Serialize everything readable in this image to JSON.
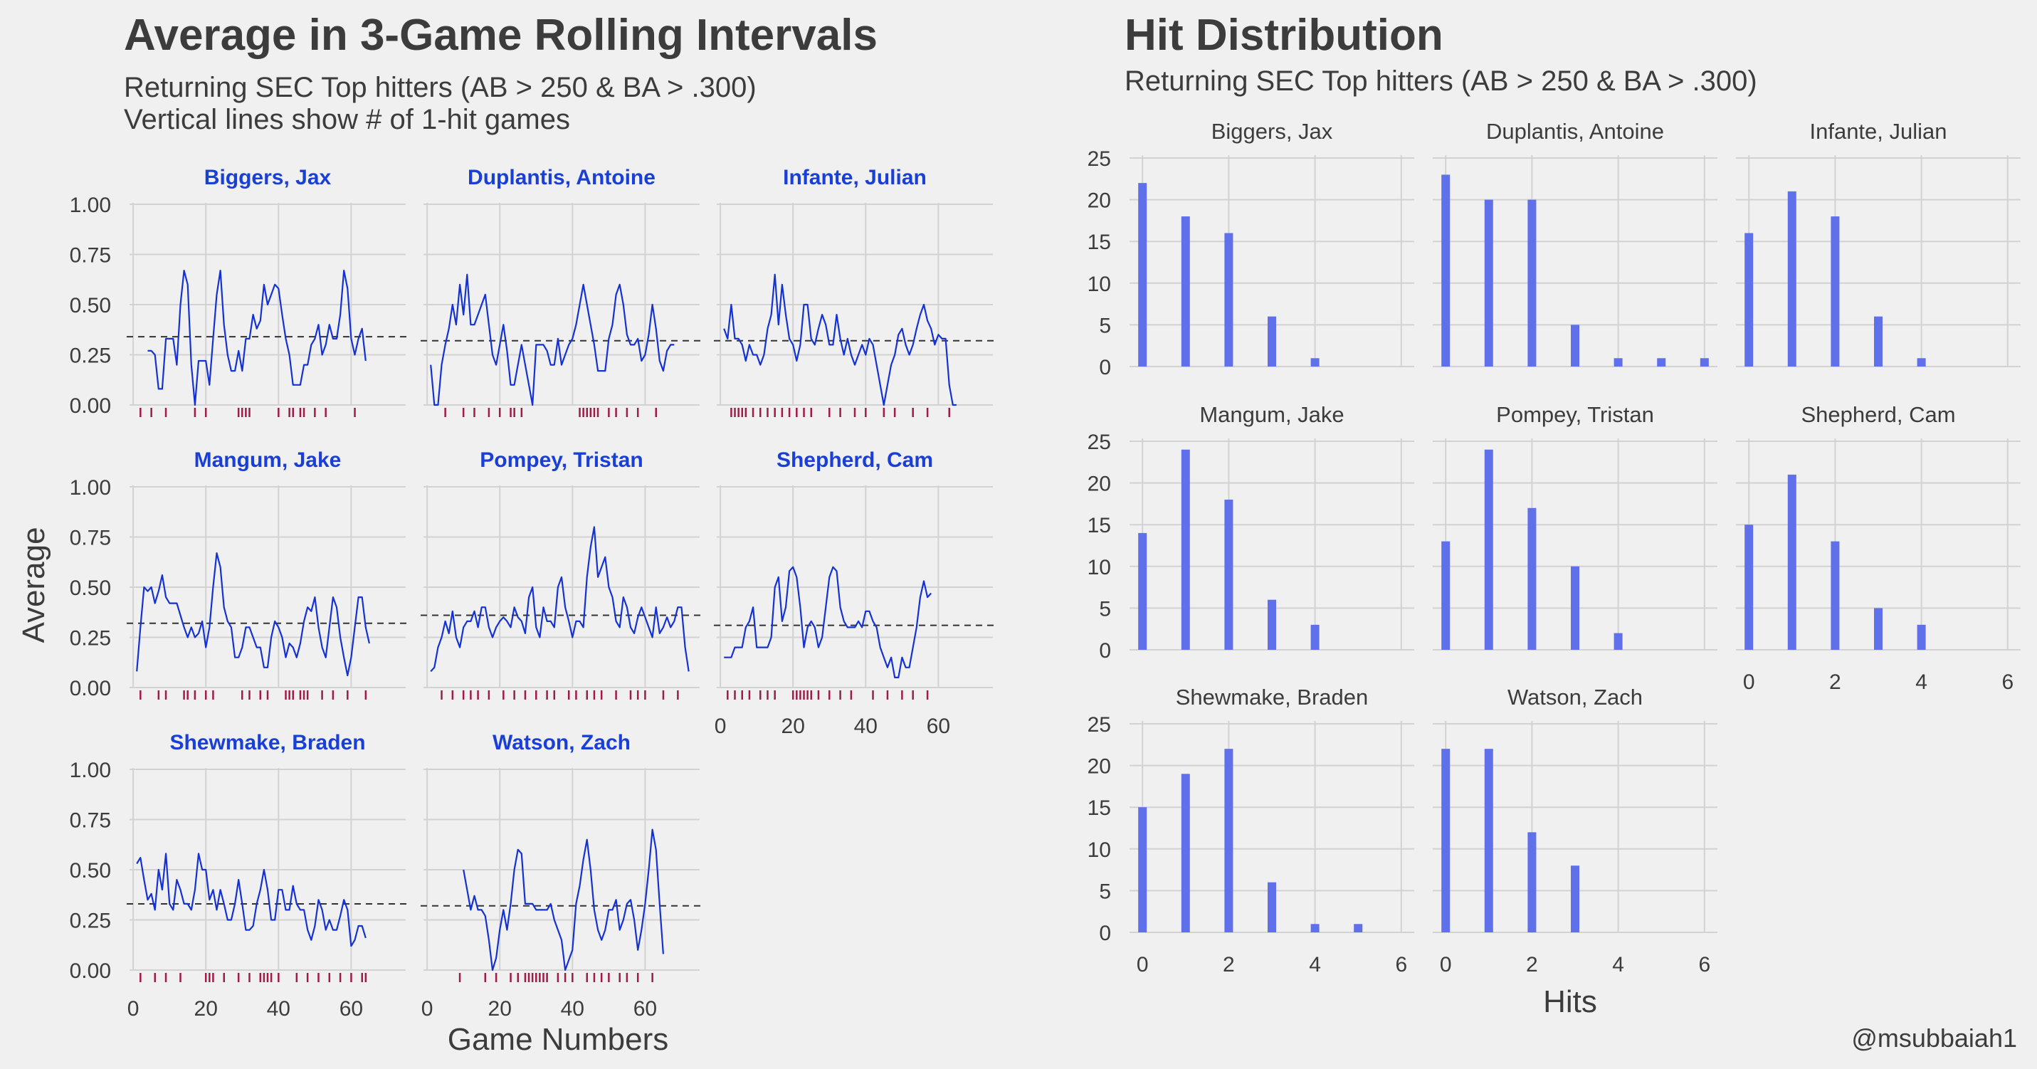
{
  "chart_data": [
    {
      "type": "line",
      "title": "Average in 3-Game Rolling Intervals",
      "subtitle": "Returning SEC Top hitters (AB > 250 & BA > .300)",
      "subtitle2": "Vertical lines show # of 1-hit games",
      "xlabel": "Game Numbers",
      "ylabel": "Average",
      "xlim": [
        -1,
        75
      ],
      "ylim": [
        0,
        1
      ],
      "x_ticks": [
        0,
        20,
        40,
        60
      ],
      "y_ticks": [
        0,
        0.25,
        0.5,
        0.75,
        1.0
      ],
      "y_tick_labels": [
        "0.00",
        "0.25",
        "0.50",
        "0.75",
        "1.00"
      ],
      "colors": {
        "line": "#1432d4",
        "rug": "#a01c45",
        "mean": "#333333"
      },
      "panels": [
        {
          "name": "Biggers, Jax",
          "start": 4,
          "mean": 0.34,
          "values": [
            0.27,
            0.27,
            0.25,
            0.08,
            0.08,
            0.33,
            0.33,
            0.33,
            0.2,
            0.5,
            0.67,
            0.6,
            0.2,
            0.0,
            0.22,
            0.22,
            0.22,
            0.1,
            0.33,
            0.55,
            0.67,
            0.4,
            0.25,
            0.17,
            0.17,
            0.27,
            0.17,
            0.33,
            0.33,
            0.45,
            0.38,
            0.42,
            0.6,
            0.5,
            0.55,
            0.6,
            0.58,
            0.45,
            0.33,
            0.25,
            0.1,
            0.1,
            0.1,
            0.2,
            0.2,
            0.3,
            0.33,
            0.4,
            0.25,
            0.3,
            0.4,
            0.33,
            0.33,
            0.45,
            0.67,
            0.58,
            0.33,
            0.25,
            0.33,
            0.38,
            0.22
          ],
          "rug": [
            2,
            5,
            9,
            17,
            20,
            29,
            30,
            31,
            32,
            40,
            43,
            44,
            46,
            47,
            50,
            53,
            61
          ]
        },
        {
          "name": "Duplantis, Antoine",
          "start": 1,
          "mean": 0.32,
          "values": [
            0.2,
            0.0,
            0.0,
            0.2,
            0.3,
            0.38,
            0.5,
            0.4,
            0.6,
            0.45,
            0.65,
            0.4,
            0.4,
            0.45,
            0.5,
            0.55,
            0.4,
            0.25,
            0.2,
            0.3,
            0.4,
            0.27,
            0.1,
            0.1,
            0.2,
            0.3,
            0.2,
            0.1,
            0.0,
            0.3,
            0.3,
            0.3,
            0.27,
            0.2,
            0.2,
            0.33,
            0.2,
            0.25,
            0.3,
            0.33,
            0.4,
            0.5,
            0.6,
            0.5,
            0.4,
            0.3,
            0.17,
            0.17,
            0.17,
            0.33,
            0.4,
            0.55,
            0.6,
            0.5,
            0.35,
            0.3,
            0.3,
            0.33,
            0.22,
            0.25,
            0.35,
            0.5,
            0.38,
            0.22,
            0.17,
            0.27,
            0.3,
            0.3
          ],
          "rug": [
            5,
            10,
            13,
            17,
            20,
            23,
            24,
            26,
            42,
            43,
            44,
            45,
            46,
            47,
            50,
            52,
            55,
            58,
            63
          ]
        },
        {
          "name": "Infante, Julian",
          "start": 1,
          "mean": 0.32,
          "values": [
            0.38,
            0.33,
            0.5,
            0.33,
            0.33,
            0.3,
            0.22,
            0.3,
            0.25,
            0.25,
            0.2,
            0.25,
            0.38,
            0.45,
            0.65,
            0.4,
            0.6,
            0.45,
            0.33,
            0.3,
            0.22,
            0.3,
            0.5,
            0.5,
            0.33,
            0.3,
            0.38,
            0.45,
            0.4,
            0.3,
            0.3,
            0.45,
            0.33,
            0.25,
            0.33,
            0.25,
            0.2,
            0.25,
            0.3,
            0.25,
            0.33,
            0.3,
            0.2,
            0.1,
            0.0,
            0.1,
            0.2,
            0.25,
            0.35,
            0.38,
            0.3,
            0.25,
            0.3,
            0.38,
            0.45,
            0.5,
            0.42,
            0.38,
            0.3,
            0.35,
            0.33,
            0.33,
            0.1,
            0.0,
            0.0
          ],
          "rug": [
            3,
            4,
            5,
            6,
            7,
            9,
            11,
            13,
            15,
            17,
            19,
            21,
            23,
            25,
            30,
            33,
            37,
            40,
            45,
            48,
            53,
            57,
            63
          ]
        },
        {
          "name": "Mangum, Jake",
          "start": 1,
          "mean": 0.32,
          "values": [
            0.08,
            0.3,
            0.5,
            0.48,
            0.5,
            0.42,
            0.48,
            0.56,
            0.45,
            0.42,
            0.42,
            0.42,
            0.36,
            0.3,
            0.25,
            0.3,
            0.25,
            0.27,
            0.33,
            0.2,
            0.3,
            0.5,
            0.67,
            0.6,
            0.4,
            0.33,
            0.3,
            0.15,
            0.15,
            0.2,
            0.3,
            0.3,
            0.25,
            0.2,
            0.2,
            0.1,
            0.1,
            0.25,
            0.33,
            0.3,
            0.25,
            0.15,
            0.22,
            0.2,
            0.15,
            0.22,
            0.33,
            0.4,
            0.38,
            0.45,
            0.3,
            0.2,
            0.15,
            0.3,
            0.45,
            0.4,
            0.25,
            0.15,
            0.06,
            0.15,
            0.3,
            0.45,
            0.45,
            0.3,
            0.22
          ],
          "rug": [
            2,
            7,
            9,
            14,
            15,
            17,
            20,
            22,
            30,
            32,
            35,
            37,
            42,
            43,
            44,
            46,
            47,
            48,
            52,
            55,
            59,
            64
          ]
        },
        {
          "name": "Pompey, Tristan",
          "start": 1,
          "mean": 0.36,
          "values": [
            0.08,
            0.1,
            0.2,
            0.25,
            0.33,
            0.27,
            0.38,
            0.25,
            0.2,
            0.3,
            0.33,
            0.33,
            0.38,
            0.3,
            0.4,
            0.4,
            0.3,
            0.25,
            0.3,
            0.33,
            0.35,
            0.33,
            0.3,
            0.4,
            0.35,
            0.33,
            0.27,
            0.45,
            0.5,
            0.3,
            0.25,
            0.4,
            0.33,
            0.33,
            0.3,
            0.5,
            0.55,
            0.4,
            0.33,
            0.25,
            0.33,
            0.33,
            0.3,
            0.55,
            0.7,
            0.8,
            0.55,
            0.6,
            0.65,
            0.5,
            0.45,
            0.33,
            0.3,
            0.45,
            0.4,
            0.3,
            0.27,
            0.35,
            0.4,
            0.35,
            0.3,
            0.25,
            0.4,
            0.27,
            0.3,
            0.35,
            0.3,
            0.33,
            0.4,
            0.4,
            0.2,
            0.08
          ],
          "rug": [
            4,
            7,
            10,
            12,
            14,
            17,
            21,
            24,
            27,
            30,
            33,
            35,
            39,
            41,
            44,
            46,
            48,
            52,
            56,
            58,
            60,
            65,
            69
          ]
        },
        {
          "name": "Shepherd, Cam",
          "start": 1,
          "mean": 0.31,
          "values": [
            0.15,
            0.15,
            0.15,
            0.2,
            0.2,
            0.2,
            0.3,
            0.33,
            0.4,
            0.2,
            0.2,
            0.2,
            0.2,
            0.25,
            0.5,
            0.55,
            0.33,
            0.4,
            0.58,
            0.6,
            0.55,
            0.4,
            0.2,
            0.3,
            0.33,
            0.3,
            0.2,
            0.25,
            0.4,
            0.55,
            0.6,
            0.58,
            0.4,
            0.33,
            0.3,
            0.3,
            0.3,
            0.33,
            0.3,
            0.38,
            0.38,
            0.33,
            0.3,
            0.2,
            0.15,
            0.1,
            0.15,
            0.05,
            0.05,
            0.15,
            0.1,
            0.1,
            0.2,
            0.3,
            0.45,
            0.53,
            0.45,
            0.47
          ],
          "rug": [
            2,
            4,
            6,
            8,
            11,
            13,
            15,
            20,
            21,
            22,
            23,
            24,
            25,
            27,
            30,
            33,
            36,
            42,
            46,
            50,
            53,
            57
          ]
        },
        {
          "name": "Shewmake, Braden",
          "start": 1,
          "mean": 0.33,
          "values": [
            0.53,
            0.56,
            0.45,
            0.35,
            0.38,
            0.3,
            0.5,
            0.4,
            0.58,
            0.33,
            0.3,
            0.45,
            0.4,
            0.33,
            0.33,
            0.3,
            0.4,
            0.58,
            0.5,
            0.5,
            0.35,
            0.4,
            0.3,
            0.4,
            0.33,
            0.25,
            0.25,
            0.33,
            0.45,
            0.33,
            0.2,
            0.2,
            0.22,
            0.33,
            0.4,
            0.5,
            0.4,
            0.25,
            0.25,
            0.4,
            0.4,
            0.3,
            0.3,
            0.42,
            0.33,
            0.3,
            0.3,
            0.2,
            0.15,
            0.22,
            0.35,
            0.3,
            0.2,
            0.25,
            0.2,
            0.2,
            0.27,
            0.35,
            0.3,
            0.12,
            0.15,
            0.22,
            0.22,
            0.16
          ],
          "rug": [
            2,
            6,
            9,
            13,
            20,
            21,
            22,
            25,
            29,
            32,
            35,
            36,
            37,
            38,
            40,
            45,
            48,
            51,
            54,
            57,
            60,
            63,
            64
          ]
        },
        {
          "name": "Watson, Zach",
          "start": 10,
          "mean": 0.32,
          "values": [
            0.5,
            0.4,
            0.3,
            0.37,
            0.3,
            0.3,
            0.27,
            0.15,
            0.0,
            0.06,
            0.2,
            0.3,
            0.2,
            0.33,
            0.5,
            0.6,
            0.58,
            0.33,
            0.33,
            0.33,
            0.3,
            0.3,
            0.3,
            0.3,
            0.33,
            0.25,
            0.2,
            0.15,
            0.0,
            0.05,
            0.1,
            0.33,
            0.42,
            0.55,
            0.65,
            0.5,
            0.3,
            0.2,
            0.15,
            0.2,
            0.3,
            0.3,
            0.35,
            0.2,
            0.25,
            0.33,
            0.35,
            0.25,
            0.1,
            0.2,
            0.33,
            0.5,
            0.7,
            0.6,
            0.33,
            0.08
          ],
          "rug": [
            9,
            16,
            19,
            23,
            25,
            27,
            28,
            29,
            30,
            31,
            32,
            33,
            36,
            38,
            40,
            44,
            46,
            48,
            50,
            53,
            55,
            58,
            62
          ]
        }
      ]
    },
    {
      "type": "bar",
      "title": "Hit Distribution",
      "subtitle": "Returning SEC Top hitters (AB > 250 & BA > .300)",
      "xlabel": "Hits",
      "ylabel": "",
      "xlim": [
        -0.3,
        6.3
      ],
      "ylim": [
        0,
        25
      ],
      "x_ticks": [
        0,
        2,
        4,
        6
      ],
      "y_ticks": [
        0,
        5,
        10,
        15,
        20,
        25
      ],
      "colors": {
        "bar": "#6070ea"
      },
      "panels": [
        {
          "name": "Biggers, Jax",
          "counts": [
            22,
            18,
            16,
            6,
            1,
            0,
            0
          ]
        },
        {
          "name": "Duplantis, Antoine",
          "counts": [
            23,
            20,
            20,
            5,
            1,
            1,
            1
          ]
        },
        {
          "name": "Infante, Julian",
          "counts": [
            16,
            21,
            18,
            6,
            1,
            0,
            0
          ]
        },
        {
          "name": "Mangum, Jake",
          "counts": [
            14,
            24,
            18,
            6,
            3,
            0,
            0
          ]
        },
        {
          "name": "Pompey, Tristan",
          "counts": [
            13,
            24,
            17,
            10,
            2,
            0,
            0
          ]
        },
        {
          "name": "Shepherd, Cam",
          "counts": [
            15,
            21,
            13,
            5,
            3,
            0,
            0
          ]
        },
        {
          "name": "Shewmake, Braden",
          "counts": [
            15,
            19,
            22,
            6,
            1,
            1,
            0
          ]
        },
        {
          "name": "Watson, Zach",
          "counts": [
            22,
            22,
            12,
            8,
            0,
            0,
            0
          ]
        }
      ]
    }
  ],
  "caption": "@msubbaiah1"
}
